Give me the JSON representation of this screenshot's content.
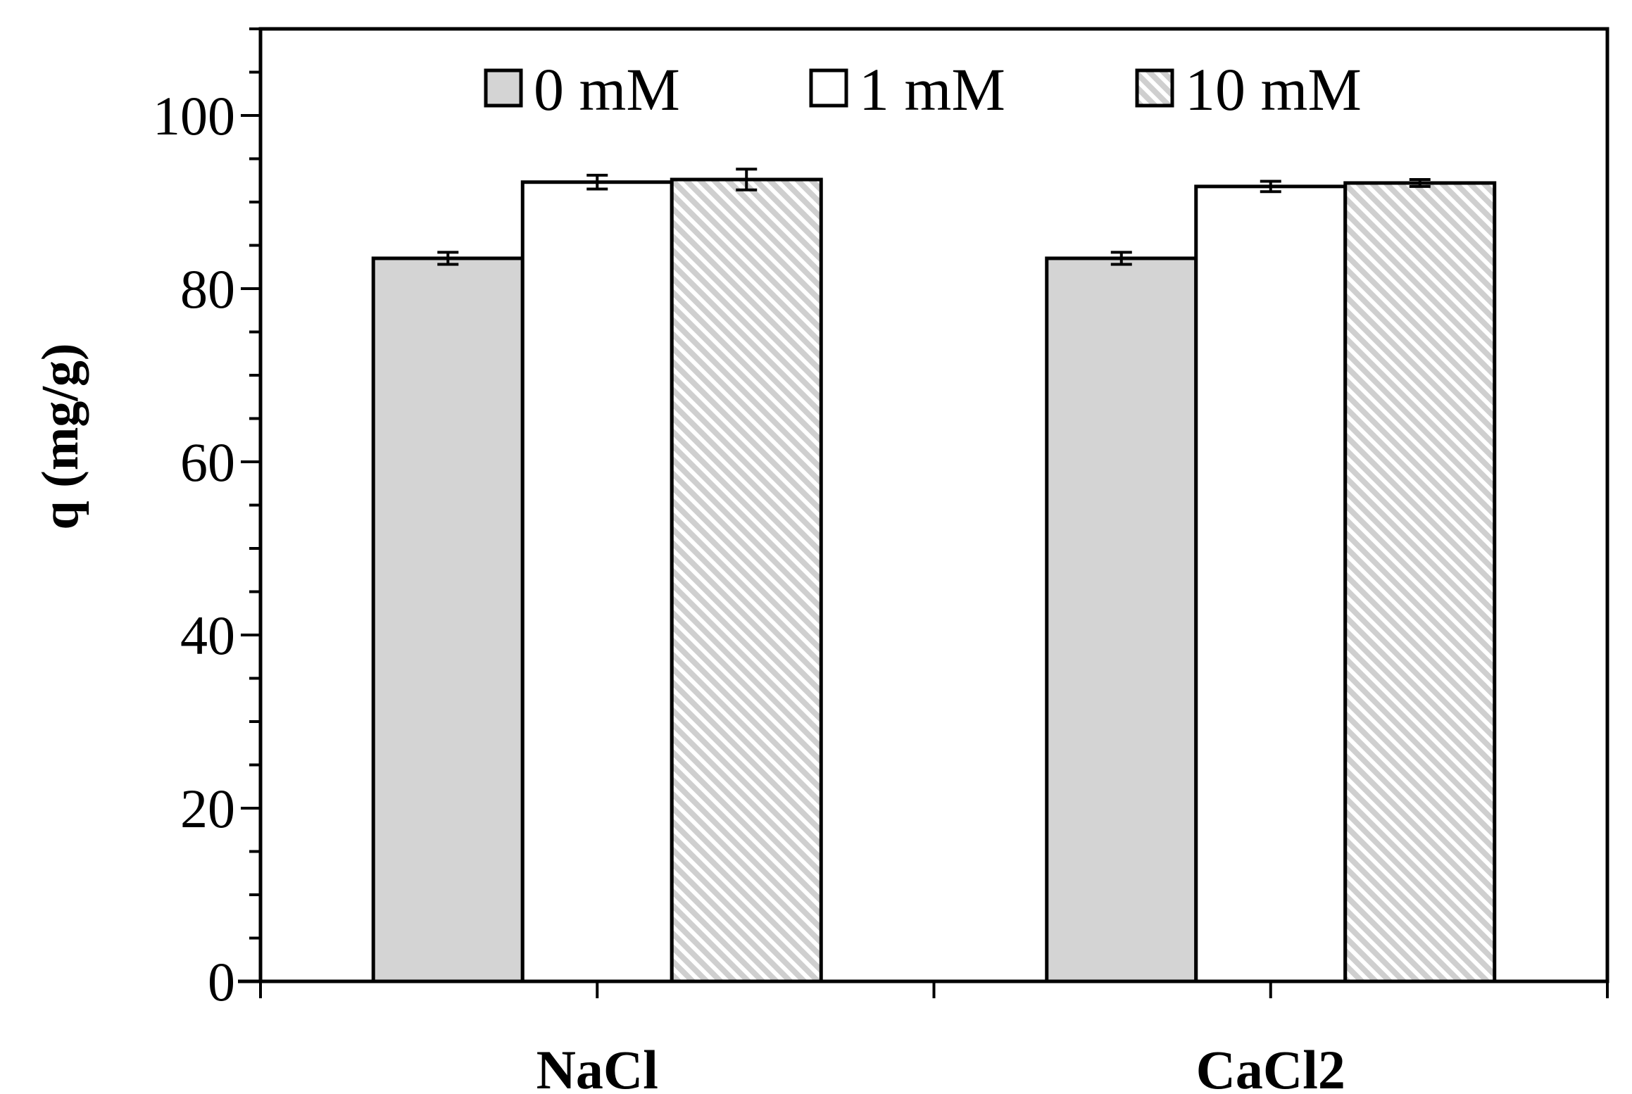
{
  "chart_data": {
    "type": "bar",
    "title": "",
    "xlabel": "",
    "ylabel": "q (mg/g)",
    "categories": [
      "NaCl",
      "CaCl2"
    ],
    "ylim": [
      0,
      110
    ],
    "yticks": [
      0,
      20,
      40,
      60,
      80,
      100
    ],
    "yticks_minor_step": 5,
    "grid": false,
    "legend_position": "top-center",
    "series": [
      {
        "name": "0 mM",
        "values": [
          83.5,
          83.5
        ],
        "errors": [
          0.7,
          0.7
        ],
        "color": "#d4d4d4",
        "pattern": "solid"
      },
      {
        "name": "1 mM",
        "values": [
          92.3,
          91.8
        ],
        "errors": [
          0.8,
          0.6
        ],
        "color": "#ffffff",
        "pattern": "solid"
      },
      {
        "name": "10 mM",
        "values": [
          92.6,
          92.2
        ],
        "errors": [
          1.2,
          0.4
        ],
        "color": "#d4d4d4",
        "pattern": "diagonal-hatch"
      }
    ]
  }
}
